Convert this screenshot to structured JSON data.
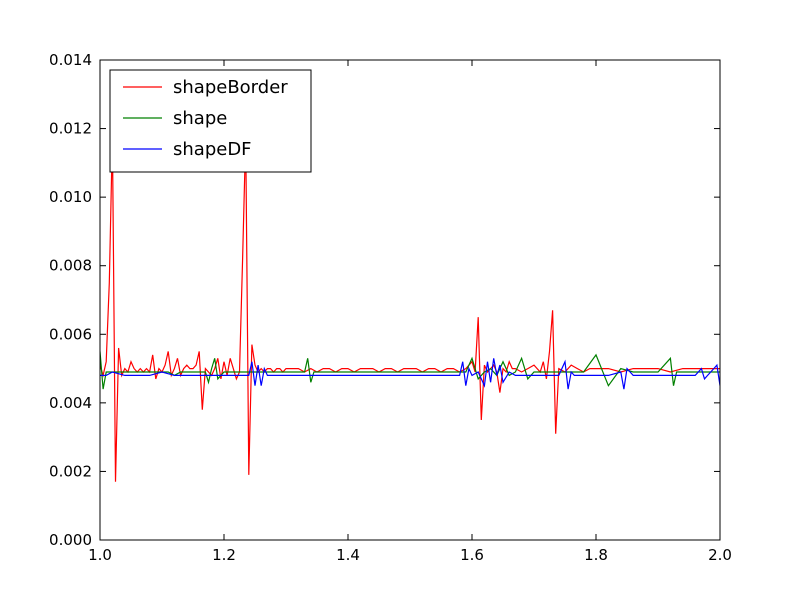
{
  "chart_data": {
    "type": "line",
    "title": "",
    "xlabel": "",
    "ylabel": "",
    "xlim": [
      1.0,
      2.0
    ],
    "ylim": [
      0.0,
      0.014
    ],
    "xticks": [
      1.0,
      1.2,
      1.4,
      1.6,
      1.8,
      2.0
    ],
    "xtick_labels": [
      "1.0",
      "1.2",
      "1.4",
      "1.6",
      "1.8",
      "2.0"
    ],
    "yticks": [
      0.0,
      0.002,
      0.004,
      0.006,
      0.008,
      0.01,
      0.012,
      0.014
    ],
    "ytick_labels": [
      "0.000",
      "0.002",
      "0.004",
      "0.006",
      "0.008",
      "0.010",
      "0.012",
      "0.014"
    ],
    "grid": false,
    "legend_position": "top-left",
    "series": [
      {
        "name": "shapeBorder",
        "color": "#ff0000",
        "x": [
          1.0,
          1.005,
          1.01,
          1.015,
          1.02,
          1.025,
          1.03,
          1.035,
          1.04,
          1.045,
          1.05,
          1.055,
          1.06,
          1.065,
          1.07,
          1.075,
          1.08,
          1.085,
          1.09,
          1.095,
          1.1,
          1.105,
          1.11,
          1.115,
          1.12,
          1.125,
          1.13,
          1.135,
          1.14,
          1.145,
          1.15,
          1.155,
          1.16,
          1.165,
          1.17,
          1.175,
          1.18,
          1.185,
          1.19,
          1.195,
          1.2,
          1.205,
          1.21,
          1.215,
          1.22,
          1.225,
          1.23,
          1.235,
          1.24,
          1.245,
          1.25,
          1.255,
          1.26,
          1.265,
          1.27,
          1.275,
          1.28,
          1.285,
          1.29,
          1.295,
          1.3,
          1.31,
          1.32,
          1.33,
          1.34,
          1.35,
          1.36,
          1.37,
          1.38,
          1.39,
          1.4,
          1.41,
          1.42,
          1.43,
          1.44,
          1.45,
          1.46,
          1.47,
          1.48,
          1.49,
          1.5,
          1.51,
          1.52,
          1.53,
          1.54,
          1.55,
          1.56,
          1.57,
          1.58,
          1.59,
          1.6,
          1.605,
          1.61,
          1.615,
          1.62,
          1.625,
          1.63,
          1.635,
          1.64,
          1.645,
          1.65,
          1.655,
          1.66,
          1.665,
          1.67,
          1.68,
          1.69,
          1.7,
          1.71,
          1.715,
          1.72,
          1.725,
          1.73,
          1.735,
          1.74,
          1.75,
          1.76,
          1.77,
          1.78,
          1.79,
          1.8,
          1.82,
          1.84,
          1.86,
          1.88,
          1.9,
          1.92,
          1.94,
          1.96,
          1.98,
          2.0
        ],
        "y": [
          0.0051,
          0.0048,
          0.0052,
          0.0075,
          0.0118,
          0.0017,
          0.0056,
          0.0048,
          0.005,
          0.0049,
          0.0052,
          0.005,
          0.0049,
          0.005,
          0.0049,
          0.005,
          0.0049,
          0.0054,
          0.0047,
          0.005,
          0.0049,
          0.0051,
          0.0055,
          0.0048,
          0.005,
          0.0053,
          0.0048,
          0.005,
          0.0051,
          0.005,
          0.005,
          0.0051,
          0.0055,
          0.0038,
          0.005,
          0.0049,
          0.0048,
          0.005,
          0.0053,
          0.0047,
          0.0052,
          0.0048,
          0.0053,
          0.005,
          0.0047,
          0.0049,
          0.0082,
          0.0118,
          0.0019,
          0.0057,
          0.0051,
          0.0049,
          0.005,
          0.0049,
          0.005,
          0.005,
          0.0049,
          0.005,
          0.005,
          0.0049,
          0.005,
          0.005,
          0.005,
          0.0049,
          0.005,
          0.0049,
          0.005,
          0.005,
          0.0049,
          0.005,
          0.005,
          0.0049,
          0.005,
          0.005,
          0.005,
          0.0049,
          0.005,
          0.005,
          0.0049,
          0.005,
          0.005,
          0.005,
          0.0049,
          0.005,
          0.005,
          0.0049,
          0.005,
          0.005,
          0.0049,
          0.005,
          0.0052,
          0.0049,
          0.0065,
          0.0035,
          0.0051,
          0.0049,
          0.005,
          0.0051,
          0.0049,
          0.0043,
          0.005,
          0.0049,
          0.0052,
          0.005,
          0.005,
          0.0049,
          0.005,
          0.0051,
          0.0049,
          0.0052,
          0.0047,
          0.0055,
          0.0067,
          0.0031,
          0.005,
          0.0049,
          0.0051,
          0.005,
          0.0049,
          0.005,
          0.005,
          0.005,
          0.0049,
          0.005,
          0.005,
          0.005,
          0.0049,
          0.005,
          0.005,
          0.005,
          0.005
        ]
      },
      {
        "name": "shape",
        "color": "#008000",
        "x": [
          1.0,
          1.005,
          1.01,
          1.015,
          1.02,
          1.03,
          1.04,
          1.05,
          1.06,
          1.07,
          1.08,
          1.09,
          1.1,
          1.11,
          1.12,
          1.13,
          1.14,
          1.15,
          1.16,
          1.17,
          1.175,
          1.18,
          1.185,
          1.19,
          1.2,
          1.21,
          1.22,
          1.23,
          1.24,
          1.25,
          1.26,
          1.27,
          1.28,
          1.29,
          1.3,
          1.31,
          1.32,
          1.33,
          1.335,
          1.34,
          1.345,
          1.35,
          1.36,
          1.37,
          1.38,
          1.39,
          1.4,
          1.42,
          1.44,
          1.46,
          1.48,
          1.5,
          1.52,
          1.54,
          1.56,
          1.58,
          1.59,
          1.6,
          1.61,
          1.62,
          1.63,
          1.64,
          1.65,
          1.66,
          1.67,
          1.68,
          1.69,
          1.7,
          1.71,
          1.72,
          1.73,
          1.74,
          1.75,
          1.76,
          1.78,
          1.8,
          1.82,
          1.84,
          1.86,
          1.88,
          1.9,
          1.92,
          1.925,
          1.93,
          1.94,
          1.96,
          1.98,
          2.0
        ],
        "y": [
          0.0055,
          0.0044,
          0.0049,
          0.0049,
          0.0049,
          0.0049,
          0.0049,
          0.0049,
          0.0049,
          0.0049,
          0.0049,
          0.0049,
          0.0049,
          0.0049,
          0.0048,
          0.0049,
          0.0049,
          0.0049,
          0.0049,
          0.0049,
          0.0046,
          0.005,
          0.0053,
          0.0047,
          0.0049,
          0.0049,
          0.0049,
          0.0049,
          0.0049,
          0.0049,
          0.0049,
          0.0049,
          0.0049,
          0.0049,
          0.0049,
          0.0049,
          0.0049,
          0.0049,
          0.0053,
          0.0046,
          0.0049,
          0.0049,
          0.0049,
          0.0049,
          0.0049,
          0.0049,
          0.0049,
          0.0049,
          0.0049,
          0.0049,
          0.0049,
          0.0049,
          0.0049,
          0.0049,
          0.0049,
          0.0049,
          0.0049,
          0.0053,
          0.0047,
          0.0049,
          0.005,
          0.0048,
          0.0052,
          0.0048,
          0.0049,
          0.0053,
          0.0047,
          0.0049,
          0.0049,
          0.0049,
          0.0049,
          0.0049,
          0.0049,
          0.0049,
          0.0049,
          0.0054,
          0.0045,
          0.005,
          0.0049,
          0.0049,
          0.0049,
          0.0053,
          0.0045,
          0.0049,
          0.0049,
          0.0049,
          0.0049,
          0.0049
        ]
      },
      {
        "name": "shapeDF",
        "color": "#0000ff",
        "x": [
          1.0,
          1.01,
          1.02,
          1.04,
          1.06,
          1.08,
          1.1,
          1.12,
          1.14,
          1.16,
          1.18,
          1.2,
          1.22,
          1.23,
          1.24,
          1.245,
          1.25,
          1.255,
          1.26,
          1.265,
          1.27,
          1.28,
          1.3,
          1.32,
          1.34,
          1.36,
          1.38,
          1.4,
          1.42,
          1.44,
          1.46,
          1.48,
          1.5,
          1.52,
          1.54,
          1.56,
          1.58,
          1.585,
          1.59,
          1.595,
          1.6,
          1.61,
          1.62,
          1.625,
          1.63,
          1.635,
          1.64,
          1.645,
          1.65,
          1.66,
          1.67,
          1.68,
          1.7,
          1.72,
          1.74,
          1.75,
          1.755,
          1.76,
          1.765,
          1.77,
          1.78,
          1.8,
          1.82,
          1.84,
          1.845,
          1.85,
          1.86,
          1.88,
          1.9,
          1.92,
          1.94,
          1.96,
          1.97,
          1.975,
          1.98,
          1.99,
          1.995,
          2.0
        ],
        "y": [
          0.0048,
          0.0048,
          0.0049,
          0.0048,
          0.0048,
          0.0048,
          0.0049,
          0.0048,
          0.0048,
          0.0048,
          0.0048,
          0.0048,
          0.0048,
          0.0048,
          0.0048,
          0.0052,
          0.0045,
          0.0051,
          0.0045,
          0.005,
          0.0048,
          0.0048,
          0.0048,
          0.0048,
          0.0048,
          0.0048,
          0.0048,
          0.0048,
          0.0048,
          0.0048,
          0.0048,
          0.0048,
          0.0048,
          0.0048,
          0.0048,
          0.0048,
          0.0048,
          0.0052,
          0.0045,
          0.005,
          0.0048,
          0.0049,
          0.0045,
          0.0052,
          0.0046,
          0.0053,
          0.0048,
          0.0051,
          0.0046,
          0.0049,
          0.0048,
          0.0048,
          0.0048,
          0.0048,
          0.0048,
          0.0052,
          0.0044,
          0.0049,
          0.0048,
          0.0048,
          0.0048,
          0.0048,
          0.0048,
          0.0049,
          0.0044,
          0.005,
          0.0048,
          0.0048,
          0.0048,
          0.0048,
          0.0048,
          0.0048,
          0.005,
          0.0047,
          0.0048,
          0.005,
          0.0051,
          0.0045
        ]
      }
    ]
  }
}
